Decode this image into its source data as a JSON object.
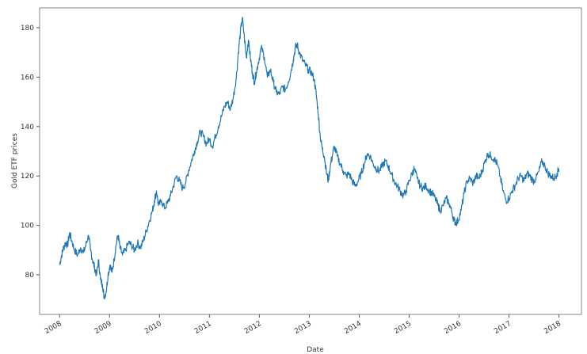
{
  "chart_data": {
    "type": "line",
    "title": "",
    "xlabel": "Date",
    "ylabel": "Gold ETF prices",
    "x_ticks": [
      "2008",
      "2009",
      "2010",
      "2011",
      "2012",
      "2013",
      "2014",
      "2015",
      "2016",
      "2017",
      "2018"
    ],
    "y_ticks": [
      80,
      100,
      120,
      140,
      160,
      180
    ],
    "xlim": [
      2007.6,
      2018.45
    ],
    "ylim": [
      64,
      188
    ],
    "grid": false,
    "legend": "none",
    "series": [
      {
        "color": "#1f77b4",
        "points": [
          [
            2008.0,
            84
          ],
          [
            2008.04,
            88
          ],
          [
            2008.08,
            91
          ],
          [
            2008.12,
            93
          ],
          [
            2008.16,
            92
          ],
          [
            2008.2,
            97
          ],
          [
            2008.24,
            94
          ],
          [
            2008.3,
            90
          ],
          [
            2008.36,
            88
          ],
          [
            2008.42,
            91
          ],
          [
            2008.48,
            89
          ],
          [
            2008.54,
            93
          ],
          [
            2008.58,
            96
          ],
          [
            2008.62,
            90
          ],
          [
            2008.66,
            86
          ],
          [
            2008.7,
            83
          ],
          [
            2008.74,
            80
          ],
          [
            2008.78,
            86
          ],
          [
            2008.82,
            78
          ],
          [
            2008.86,
            76
          ],
          [
            2008.89,
            71
          ],
          [
            2008.93,
            73
          ],
          [
            2008.97,
            80
          ],
          [
            2009.01,
            84
          ],
          [
            2009.05,
            81
          ],
          [
            2009.09,
            86
          ],
          [
            2009.13,
            92
          ],
          [
            2009.17,
            96
          ],
          [
            2009.21,
            91
          ],
          [
            2009.26,
            88
          ],
          [
            2009.32,
            90
          ],
          [
            2009.38,
            93
          ],
          [
            2009.44,
            92
          ],
          [
            2009.5,
            90
          ],
          [
            2009.56,
            93
          ],
          [
            2009.62,
            91
          ],
          [
            2009.68,
            94
          ],
          [
            2009.74,
            98
          ],
          [
            2009.8,
            102
          ],
          [
            2009.86,
            106
          ],
          [
            2009.9,
            110
          ],
          [
            2009.94,
            114
          ],
          [
            2009.98,
            108
          ],
          [
            2010.04,
            110
          ],
          [
            2010.1,
            107
          ],
          [
            2010.16,
            109
          ],
          [
            2010.22,
            112
          ],
          [
            2010.28,
            116
          ],
          [
            2010.34,
            120
          ],
          [
            2010.4,
            118
          ],
          [
            2010.46,
            115
          ],
          [
            2010.52,
            117
          ],
          [
            2010.58,
            122
          ],
          [
            2010.64,
            126
          ],
          [
            2010.7,
            130
          ],
          [
            2010.76,
            134
          ],
          [
            2010.82,
            138
          ],
          [
            2010.88,
            136
          ],
          [
            2010.94,
            133
          ],
          [
            2011.0,
            135
          ],
          [
            2011.06,
            132
          ],
          [
            2011.12,
            136
          ],
          [
            2011.18,
            140
          ],
          [
            2011.24,
            144
          ],
          [
            2011.3,
            148
          ],
          [
            2011.36,
            150
          ],
          [
            2011.42,
            147
          ],
          [
            2011.48,
            152
          ],
          [
            2011.54,
            160
          ],
          [
            2011.58,
            170
          ],
          [
            2011.62,
            178
          ],
          [
            2011.66,
            184
          ],
          [
            2011.7,
            176
          ],
          [
            2011.74,
            168
          ],
          [
            2011.78,
            175
          ],
          [
            2011.82,
            168
          ],
          [
            2011.86,
            162
          ],
          [
            2011.9,
            158
          ],
          [
            2011.94,
            162
          ],
          [
            2011.98,
            166
          ],
          [
            2012.04,
            172
          ],
          [
            2012.1,
            168
          ],
          [
            2012.16,
            160
          ],
          [
            2012.22,
            163
          ],
          [
            2012.28,
            158
          ],
          [
            2012.34,
            154
          ],
          [
            2012.4,
            153
          ],
          [
            2012.46,
            156
          ],
          [
            2012.52,
            155
          ],
          [
            2012.58,
            158
          ],
          [
            2012.64,
            163
          ],
          [
            2012.68,
            167
          ],
          [
            2012.72,
            172
          ],
          [
            2012.76,
            173
          ],
          [
            2012.8,
            170
          ],
          [
            2012.86,
            167
          ],
          [
            2012.92,
            165
          ],
          [
            2012.98,
            163
          ],
          [
            2013.04,
            162
          ],
          [
            2013.1,
            159
          ],
          [
            2013.14,
            153
          ],
          [
            2013.18,
            145
          ],
          [
            2013.22,
            136
          ],
          [
            2013.26,
            131
          ],
          [
            2013.3,
            128
          ],
          [
            2013.34,
            122
          ],
          [
            2013.38,
            118
          ],
          [
            2013.42,
            124
          ],
          [
            2013.46,
            128
          ],
          [
            2013.5,
            132
          ],
          [
            2013.56,
            128
          ],
          [
            2013.62,
            125
          ],
          [
            2013.68,
            122
          ],
          [
            2013.74,
            120
          ],
          [
            2013.8,
            121
          ],
          [
            2013.86,
            118
          ],
          [
            2013.92,
            116
          ],
          [
            2013.98,
            118
          ],
          [
            2014.04,
            121
          ],
          [
            2014.1,
            125
          ],
          [
            2014.16,
            129
          ],
          [
            2014.22,
            128
          ],
          [
            2014.28,
            125
          ],
          [
            2014.34,
            123
          ],
          [
            2014.4,
            122
          ],
          [
            2014.46,
            124
          ],
          [
            2014.52,
            126
          ],
          [
            2014.58,
            124
          ],
          [
            2014.64,
            121
          ],
          [
            2014.7,
            118
          ],
          [
            2014.76,
            116
          ],
          [
            2014.82,
            114
          ],
          [
            2014.88,
            112
          ],
          [
            2014.94,
            114
          ],
          [
            2015.0,
            118
          ],
          [
            2015.06,
            121
          ],
          [
            2015.1,
            123
          ],
          [
            2015.16,
            119
          ],
          [
            2015.22,
            116
          ],
          [
            2015.28,
            115
          ],
          [
            2015.34,
            116
          ],
          [
            2015.4,
            114
          ],
          [
            2015.46,
            113
          ],
          [
            2015.52,
            111
          ],
          [
            2015.58,
            108
          ],
          [
            2015.62,
            106
          ],
          [
            2015.68,
            108
          ],
          [
            2015.74,
            111
          ],
          [
            2015.8,
            109
          ],
          [
            2015.86,
            105
          ],
          [
            2015.9,
            102
          ],
          [
            2015.94,
            101
          ],
          [
            2015.98,
            102
          ],
          [
            2016.04,
            106
          ],
          [
            2016.1,
            113
          ],
          [
            2016.16,
            118
          ],
          [
            2016.22,
            119
          ],
          [
            2016.28,
            117
          ],
          [
            2016.34,
            120
          ],
          [
            2016.4,
            119
          ],
          [
            2016.46,
            122
          ],
          [
            2016.52,
            126
          ],
          [
            2016.58,
            129
          ],
          [
            2016.64,
            128
          ],
          [
            2016.7,
            127
          ],
          [
            2016.76,
            125
          ],
          [
            2016.82,
            120
          ],
          [
            2016.88,
            114
          ],
          [
            2016.94,
            110
          ],
          [
            2017.0,
            111
          ],
          [
            2017.06,
            114
          ],
          [
            2017.12,
            116
          ],
          [
            2017.18,
            119
          ],
          [
            2017.24,
            120
          ],
          [
            2017.3,
            118
          ],
          [
            2017.36,
            121
          ],
          [
            2017.42,
            120
          ],
          [
            2017.48,
            118
          ],
          [
            2017.54,
            119
          ],
          [
            2017.6,
            122
          ],
          [
            2017.66,
            126
          ],
          [
            2017.72,
            124
          ],
          [
            2017.78,
            121
          ],
          [
            2017.84,
            120
          ],
          [
            2017.9,
            119
          ],
          [
            2017.96,
            121
          ],
          [
            2018.0,
            123
          ]
        ]
      }
    ]
  }
}
